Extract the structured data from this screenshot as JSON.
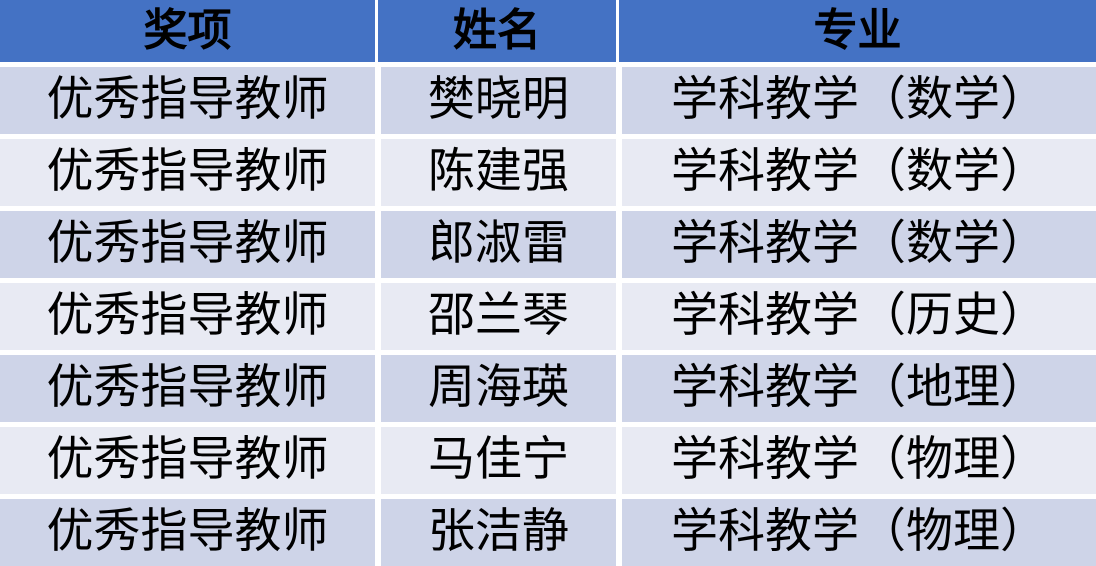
{
  "chart_data": {
    "type": "table",
    "columns": [
      "奖项",
      "姓名",
      "专业"
    ],
    "rows": [
      [
        "优秀指导教师",
        "樊晓明",
        "学科教学（数学）"
      ],
      [
        "优秀指导教师",
        "陈建强",
        "学科教学（数学）"
      ],
      [
        "优秀指导教师",
        "郎淑雷",
        "学科教学（数学）"
      ],
      [
        "优秀指导教师",
        "邵兰琴",
        "学科教学（历史）"
      ],
      [
        "优秀指导教师",
        "周海瑛",
        "学科教学（地理）"
      ],
      [
        "优秀指导教师",
        "马佳宁",
        "学科教学（物理）"
      ],
      [
        "优秀指导教师",
        "张洁静",
        "学科教学（物理）"
      ]
    ]
  },
  "colors": {
    "header_bg": "#4472C4",
    "row_dark": "#CED4E8",
    "row_light": "#E8EAF3",
    "gap": "#FFFFFF",
    "text": "#000000"
  }
}
